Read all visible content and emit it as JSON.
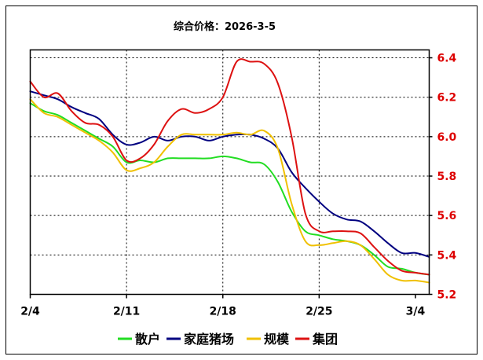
{
  "chart_data": {
    "type": "line",
    "title": "综合价格：2026-3-5",
    "x": [
      "2/4",
      "2/5",
      "2/6",
      "2/7",
      "2/8",
      "2/9",
      "2/10",
      "2/11",
      "2/12",
      "2/13",
      "2/14",
      "2/15",
      "2/16",
      "2/17",
      "2/18",
      "2/19",
      "2/20",
      "2/21",
      "2/22",
      "2/23",
      "2/24",
      "2/25",
      "2/26",
      "2/27",
      "2/28",
      "3/1",
      "3/2",
      "3/3",
      "3/4",
      "3/5"
    ],
    "x_ticks": [
      "2/4",
      "2/11",
      "2/18",
      "2/25",
      "3/4"
    ],
    "y_ticks": [
      "5.2",
      "5.4",
      "5.6",
      "5.8",
      "6.0",
      "6.2",
      "6.4"
    ],
    "ylim": [
      5.2,
      6.44
    ],
    "grid": true,
    "legend_position": "bottom",
    "series": [
      {
        "name": "散户",
        "color": "#22dd22",
        "values": [
          6.17,
          6.13,
          6.11,
          6.07,
          6.03,
          5.99,
          5.95,
          5.87,
          5.88,
          5.87,
          5.89,
          5.89,
          5.89,
          5.89,
          5.9,
          5.89,
          5.87,
          5.86,
          5.77,
          5.62,
          5.52,
          5.5,
          5.48,
          5.47,
          5.45,
          5.4,
          5.34,
          5.33,
          5.31,
          5.3
        ]
      },
      {
        "name": "家庭猪场",
        "color": "#000080",
        "values": [
          6.23,
          6.21,
          6.19,
          6.15,
          6.12,
          6.09,
          6.01,
          5.96,
          5.97,
          6.0,
          5.98,
          6.0,
          6.0,
          5.98,
          6.0,
          6.01,
          6.01,
          5.99,
          5.94,
          5.82,
          5.74,
          5.67,
          5.61,
          5.58,
          5.57,
          5.52,
          5.46,
          5.41,
          5.41,
          5.39
        ]
      },
      {
        "name": "规模",
        "color": "#f0c000",
        "values": [
          6.19,
          6.12,
          6.1,
          6.06,
          6.02,
          5.98,
          5.92,
          5.83,
          5.84,
          5.87,
          5.95,
          6.01,
          6.01,
          6.01,
          6.01,
          6.02,
          6.01,
          6.03,
          5.94,
          5.66,
          5.47,
          5.45,
          5.46,
          5.47,
          5.45,
          5.38,
          5.3,
          5.27,
          5.27,
          5.26
        ]
      },
      {
        "name": "集团",
        "color": "#dd1111",
        "values": [
          6.28,
          6.2,
          6.22,
          6.13,
          6.07,
          6.06,
          6.0,
          5.88,
          5.89,
          5.96,
          6.08,
          6.14,
          6.12,
          6.14,
          6.2,
          6.38,
          6.38,
          6.37,
          6.27,
          6.0,
          5.61,
          5.52,
          5.52,
          5.52,
          5.51,
          5.44,
          5.37,
          5.32,
          5.31,
          5.3
        ]
      }
    ]
  }
}
